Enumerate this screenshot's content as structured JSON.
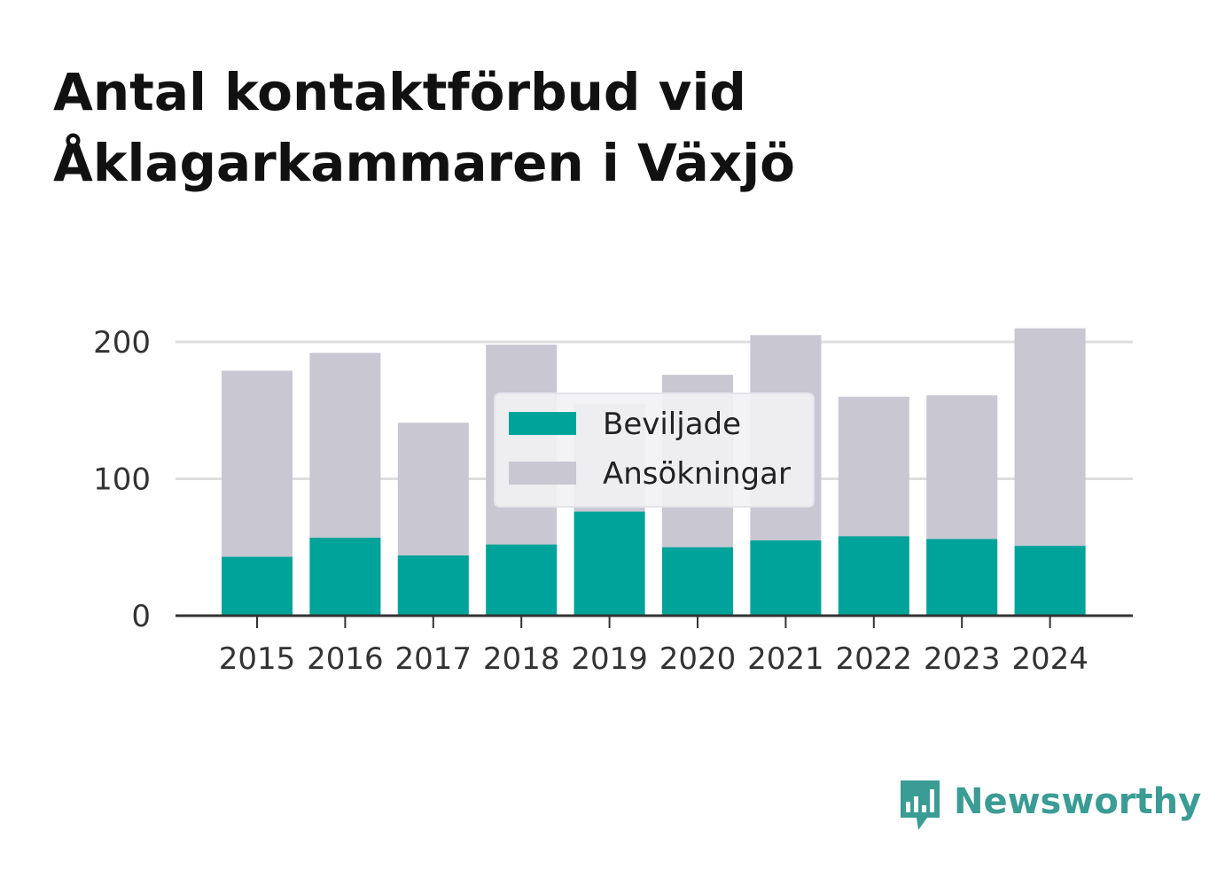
{
  "title_lines": [
    "Antal kontaktförbud vid",
    "Åklagarkammaren i Växjö"
  ],
  "logo_text": "Newsworthy",
  "colors": {
    "beviljade": "#00a39a",
    "ansokningar": "#c8c7d2",
    "grid": "#dddddd",
    "axis": "#333333",
    "logo": "#3a9c94"
  },
  "chart_data": {
    "type": "bar",
    "title": "Antal kontaktförbud vid Åklagarkammaren i Växjö",
    "xlabel": "",
    "ylabel": "",
    "categories": [
      "2015",
      "2016",
      "2017",
      "2018",
      "2019",
      "2020",
      "2021",
      "2022",
      "2023",
      "2024"
    ],
    "series": [
      {
        "name": "Beviljade",
        "values": [
          43,
          57,
          44,
          52,
          76,
          50,
          55,
          58,
          56,
          51
        ]
      },
      {
        "name": "Ansökningar",
        "values": [
          179,
          192,
          141,
          198,
          155,
          176,
          205,
          160,
          161,
          210
        ]
      }
    ],
    "overlap": true,
    "yticks": [
      0,
      100,
      200
    ],
    "ylim": [
      0,
      215
    ],
    "grid": true,
    "legend": {
      "position": "center",
      "entries": [
        "Beviljade",
        "Ansökningar"
      ]
    }
  }
}
